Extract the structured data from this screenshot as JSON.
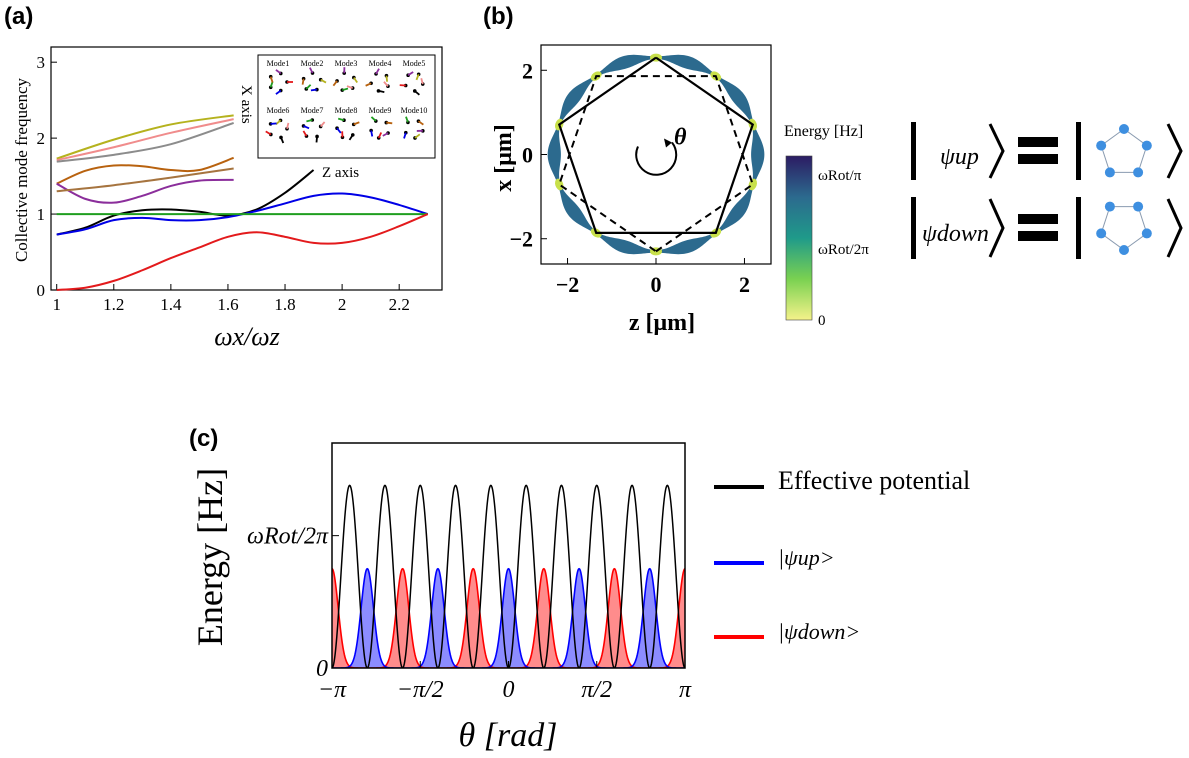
{
  "panels": {
    "a": "(a)",
    "b": "(b)",
    "c": "(c)"
  },
  "chart_data": [
    {
      "type": "line",
      "panel": "a",
      "xlabel": "ωx/ωz",
      "ylabel": "Collective mode frequency",
      "xlim": [
        0.98,
        2.35
      ],
      "ylim": [
        0,
        3.2
      ],
      "xticks": [
        "1",
        "1.2",
        "1.4",
        "1.6",
        "1.8",
        "2",
        "2.2"
      ],
      "yticks": [
        "0",
        "1",
        "2",
        "3"
      ],
      "series": [
        {
          "color": "#b5b21e",
          "x": [
            1.0,
            1.2,
            1.4,
            1.62
          ],
          "y": [
            1.73,
            1.98,
            2.18,
            2.3
          ]
        },
        {
          "color": "#f08c8c",
          "x": [
            1.0,
            1.2,
            1.4,
            1.62
          ],
          "y": [
            1.71,
            1.88,
            2.07,
            2.25
          ]
        },
        {
          "color": "#8c8c8c",
          "x": [
            1.0,
            1.2,
            1.4,
            1.62
          ],
          "y": [
            1.69,
            1.78,
            1.92,
            2.2
          ]
        },
        {
          "color": "#b8620f",
          "x": [
            1.0,
            1.1,
            1.2,
            1.3,
            1.4,
            1.5,
            1.62
          ],
          "y": [
            1.4,
            1.57,
            1.64,
            1.63,
            1.58,
            1.58,
            1.74
          ]
        },
        {
          "color": "#8b2e9b",
          "x": [
            1.0,
            1.1,
            1.2,
            1.3,
            1.4,
            1.5,
            1.62
          ],
          "y": [
            1.4,
            1.2,
            1.15,
            1.24,
            1.37,
            1.44,
            1.45
          ]
        },
        {
          "color": "#a6743f",
          "x": [
            1.0,
            1.2,
            1.4,
            1.62
          ],
          "y": [
            1.3,
            1.38,
            1.48,
            1.6
          ]
        },
        {
          "color": "#000000",
          "x": [
            1.0,
            1.1,
            1.2,
            1.3,
            1.4,
            1.5,
            1.6,
            1.7,
            1.8,
            1.9
          ],
          "y": [
            0.73,
            0.82,
            0.98,
            1.05,
            1.06,
            1.03,
            0.98,
            1.06,
            1.28,
            1.58
          ]
        },
        {
          "color": "#0000e6",
          "x": [
            1.0,
            1.1,
            1.2,
            1.3,
            1.4,
            1.5,
            1.6,
            1.7,
            1.8,
            1.9,
            2.0,
            2.1,
            2.2,
            2.3
          ],
          "y": [
            0.73,
            0.8,
            0.92,
            0.95,
            0.92,
            0.92,
            0.96,
            1.04,
            1.14,
            1.24,
            1.27,
            1.22,
            1.12,
            1.0
          ]
        },
        {
          "color": "#1f9e1f",
          "x": [
            1.0,
            2.3
          ],
          "y": [
            1.0,
            1.0
          ]
        },
        {
          "color": "#e31a1c",
          "x": [
            1.0,
            1.1,
            1.2,
            1.3,
            1.4,
            1.5,
            1.6,
            1.7,
            1.8,
            1.9,
            2.0,
            2.1,
            2.2,
            2.3
          ],
          "y": [
            0.0,
            0.03,
            0.12,
            0.26,
            0.42,
            0.56,
            0.7,
            0.76,
            0.7,
            0.62,
            0.62,
            0.7,
            0.84,
            1.0
          ]
        }
      ],
      "inset": {
        "x_axis_label": "X axis",
        "z_axis_label": "Z axis",
        "modes": [
          "Mode1",
          "Mode2",
          "Mode3",
          "Mode4",
          "Mode5",
          "Mode6",
          "Mode7",
          "Mode8",
          "Mode9",
          "Mode10"
        ]
      }
    },
    {
      "type": "heatmap",
      "panel": "b",
      "xlabel": "z [μm]",
      "ylabel": "x [μm]",
      "xlim": [
        -2.6,
        2.6
      ],
      "ylim": [
        -2.6,
        2.6
      ],
      "xticks": [
        "−2",
        "0",
        "2"
      ],
      "yticks": [
        "−2",
        "0",
        "2"
      ],
      "ring_radius": 2.3,
      "polygon_sides": 5,
      "rotation_symbol": "θ",
      "colorbar": {
        "title": "Energy [Hz]",
        "ticks": [
          "ωRot/π",
          "ωRot/2π",
          "0"
        ]
      },
      "state_labels": [
        "ψup",
        "ψdown"
      ]
    },
    {
      "type": "area",
      "panel": "c",
      "xlabel": "θ [rad]",
      "ylabel": "Energy [Hz]",
      "xlim": [
        -3.1416,
        3.1416
      ],
      "xticks": [
        "−π",
        "−π/2",
        "0",
        "π/2",
        "π"
      ],
      "yticks": [
        "0",
        "ωRot/2π"
      ],
      "series": [
        {
          "name": "Effective potential",
          "color": "#000000",
          "peaks": 10,
          "amplitude": 1.38
        },
        {
          "name": "|ψup>",
          "color": "#0000ff",
          "peaks": 5,
          "amplitude": 0.75
        },
        {
          "name": "|ψdown>",
          "color": "#ff0000",
          "peaks": 5,
          "amplitude": 0.75
        }
      ],
      "y_marker_value": 1.0
    }
  ]
}
